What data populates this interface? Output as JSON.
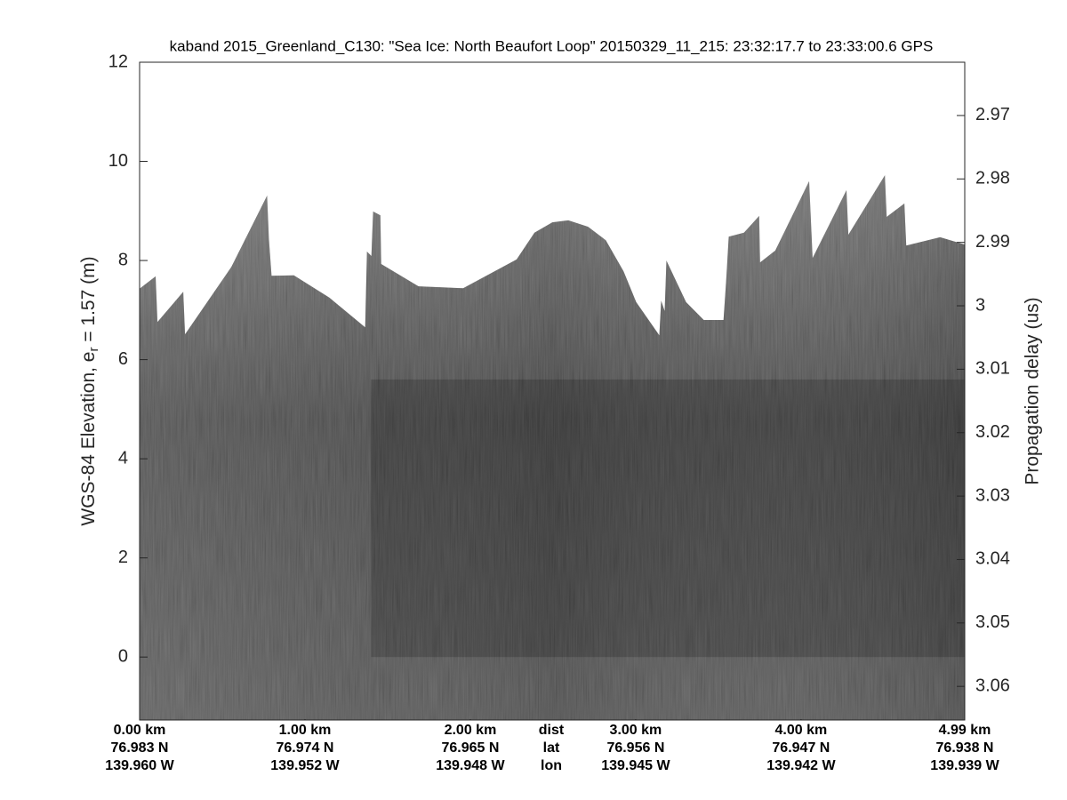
{
  "chart_data": {
    "type": "echogram",
    "title": "kaband 2015_Greenland_C130: \"Sea Ice: North Beaufort Loop\"  20150329_11_215: 23:32:17.7 to 23:33:00.6 GPS",
    "ylabel": {
      "main": "WGS-84 Elevation, e",
      "sub": "r",
      "rest": " = 1.57 (m)"
    },
    "y2label": "Propagation delay (us)",
    "xlim": [
      0,
      4.99
    ],
    "xticks": [
      {
        "value": 0,
        "label": "0.00 km"
      },
      {
        "value": 1,
        "label": "1.00 km"
      },
      {
        "value": 2,
        "label": "2.00 km"
      },
      {
        "value": 3,
        "label": "3.00 km"
      },
      {
        "value": 4,
        "label": "4.00 km"
      },
      {
        "value": 4.99,
        "label": "4.99 km"
      }
    ],
    "xtick_lat": [
      "76.983 N",
      "76.974 N",
      "76.965 N",
      "76.956 N",
      "76.947 N",
      "76.938 N"
    ],
    "xtick_lon": [
      "139.960 W",
      "139.952 W",
      "139.948 W",
      "139.945 W",
      "139.942 W",
      "139.939 W"
    ],
    "row_labels": [
      "dist",
      "lat",
      "lon"
    ],
    "ylim": [
      -1.27,
      12.0
    ],
    "yticks": [
      0,
      2,
      4,
      6,
      8,
      10,
      12
    ],
    "y2lim": [
      3.0653,
      2.9616
    ],
    "y2ticks": [
      2.97,
      2.98,
      2.99,
      3,
      3.01,
      3.02,
      3.03,
      3.04,
      3.05,
      3.06
    ],
    "surface": {
      "name": "surface",
      "color": "#5a5a5a",
      "x": [
        0,
        0.097,
        0.108,
        0.264,
        0.275,
        0.555,
        0.771,
        0.782,
        0.798,
        0.933,
        1.148,
        1.364,
        1.375,
        1.402,
        1.412,
        1.456,
        1.461,
        1.687,
        1.957,
        2.28,
        2.388,
        2.496,
        2.593,
        2.712,
        2.819,
        2.927,
        3.003,
        3.143,
        3.154,
        3.175,
        3.186,
        3.305,
        3.412,
        3.531,
        3.547,
        3.563,
        3.655,
        3.747,
        3.752,
        3.844,
        4.049,
        4.07,
        4.275,
        4.286,
        4.507,
        4.518,
        4.625,
        4.636,
        4.841,
        4.991
      ],
      "values": [
        7.43,
        7.68,
        6.76,
        7.37,
        6.51,
        7.87,
        9.31,
        8.45,
        7.69,
        7.7,
        7.25,
        6.65,
        8.18,
        8.09,
        8.99,
        8.91,
        7.93,
        7.48,
        7.44,
        8.02,
        8.56,
        8.77,
        8.81,
        8.68,
        8.41,
        7.78,
        7.16,
        6.49,
        7.19,
        6.98,
        8.0,
        7.16,
        6.8,
        6.8,
        7.57,
        8.48,
        8.56,
        8.9,
        7.96,
        8.2,
        9.6,
        8.05,
        9.42,
        8.52,
        9.72,
        8.88,
        9.15,
        8.3,
        8.47,
        8.32
      ]
    }
  }
}
